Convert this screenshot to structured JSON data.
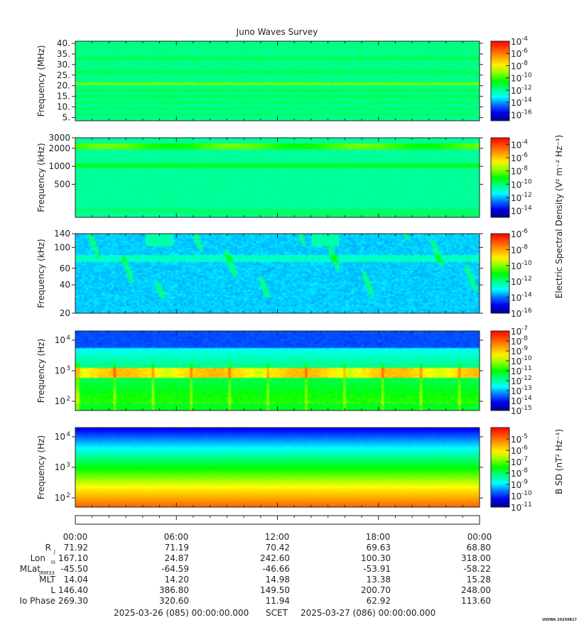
{
  "chart_data": {
    "type": "heatmap",
    "title": "Juno Waves Survey",
    "colorbar_label_e": "Electric Spectral Density (V² m⁻² Hz⁻¹)",
    "colorbar_label_b": "B SD (nT² Hz⁻¹)",
    "panels": [
      {
        "ylabel": "Frequency (MHz)",
        "yscale": "linear",
        "ylim": [
          3.5,
          41
        ],
        "yticks": [
          {
            "v": 5,
            "t": "5."
          },
          {
            "v": 10,
            "t": "10."
          },
          {
            "v": 15,
            "t": "15."
          },
          {
            "v": 20,
            "t": "20."
          },
          {
            "v": 25,
            "t": "25."
          },
          {
            "v": 30,
            "t": "30."
          },
          {
            "v": 35,
            "t": "35."
          },
          {
            "v": 40,
            "t": "40."
          }
        ],
        "cbar_exps": [
          -16,
          -14,
          -12,
          -10,
          -8,
          -6,
          -4
        ],
        "cbar_range": [
          -17,
          -4
        ],
        "style": "hf"
      },
      {
        "ylabel": "Frequency (kHz)",
        "yscale": "log",
        "ylim": [
          140,
          3000
        ],
        "yticks": [
          {
            "v": 500,
            "t": "500"
          },
          {
            "v": 1000,
            "t": "1000"
          },
          {
            "v": 2000,
            "t": "2000"
          },
          {
            "v": 3000,
            "t": "3000"
          }
        ],
        "cbar_exps": [
          -14,
          -12,
          -10,
          -8,
          -6,
          -4
        ],
        "cbar_range": [
          -15,
          -3
        ],
        "style": "mf"
      },
      {
        "ylabel": "Frequency (kHz)",
        "yscale": "log",
        "ylim": [
          20,
          140
        ],
        "yticks": [
          {
            "v": 20,
            "t": "20"
          },
          {
            "v": 40,
            "t": "40"
          },
          {
            "v": 60,
            "t": "60"
          },
          {
            "v": 100,
            "t": "100"
          },
          {
            "v": 140,
            "t": "140"
          }
        ],
        "cbar_exps": [
          -16,
          -14,
          -12,
          -10,
          -8,
          -6
        ],
        "cbar_range": [
          -16,
          -6
        ],
        "style": "lf"
      },
      {
        "ylabel": "Frequency (Hz)",
        "yscale": "log",
        "ylim": [
          50,
          20000
        ],
        "yticks": [
          {
            "v": 100,
            "t": "10",
            "e": "2"
          },
          {
            "v": 1000,
            "t": "10",
            "e": "3"
          },
          {
            "v": 10000,
            "t": "10",
            "e": "4"
          }
        ],
        "cbar_exps": [
          -15,
          -14,
          -13,
          -12,
          -11,
          -10,
          -9,
          -8,
          -7
        ],
        "cbar_range": [
          -15,
          -7
        ],
        "style": "elf"
      },
      {
        "ylabel": "Frequency (Hz)",
        "yscale": "log",
        "ylim": [
          50,
          20000
        ],
        "yticks": [
          {
            "v": 100,
            "t": "10",
            "e": "2"
          },
          {
            "v": 1000,
            "t": "10",
            "e": "3"
          },
          {
            "v": 10000,
            "t": "10",
            "e": "4"
          }
        ],
        "cbar_exps": [
          -11,
          -10,
          -9,
          -8,
          -7,
          -6,
          -5
        ],
        "cbar_range": [
          -11,
          -4
        ],
        "style": "mag"
      }
    ],
    "x_range_hours": [
      0,
      24
    ],
    "x_tick_hours": [
      0,
      6,
      12,
      18,
      24
    ],
    "x_tick_labels": [
      "00:00",
      "06:00",
      "12:00",
      "18:00",
      "00:00"
    ],
    "ephemeris": [
      {
        "label": "R",
        "sub": "J",
        "values": [
          "71.92",
          "71.19",
          "70.42",
          "69.63",
          "68.80"
        ]
      },
      {
        "label": "Lon",
        "sub": "III",
        "values": [
          "167.10",
          "24.87",
          "242.60",
          "100.30",
          "318.00"
        ]
      },
      {
        "label": "MLat",
        "sub": "JRM33",
        "values": [
          "-45.50",
          "-64.59",
          "-46.66",
          "-53.91",
          "-58.22"
        ]
      },
      {
        "label": "MLT",
        "sub": "",
        "values": [
          "14.04",
          "14.20",
          "14.98",
          "13.38",
          "15.28"
        ]
      },
      {
        "label": "L",
        "sub": "",
        "values": [
          "146.40",
          "386.80",
          "149.50",
          "200.70",
          "248.00"
        ]
      },
      {
        "label": "Io Phase",
        "sub": "",
        "values": [
          "269.30",
          "320.60",
          "11.94",
          "62.92",
          "113.60"
        ]
      }
    ],
    "time_start": "2025-03-26 (085) 00:00:00.000",
    "time_axis_label": "SCET",
    "time_end": "2025-03-27 (086) 00:00:00.000",
    "credit": "UIOWA 20250817"
  }
}
